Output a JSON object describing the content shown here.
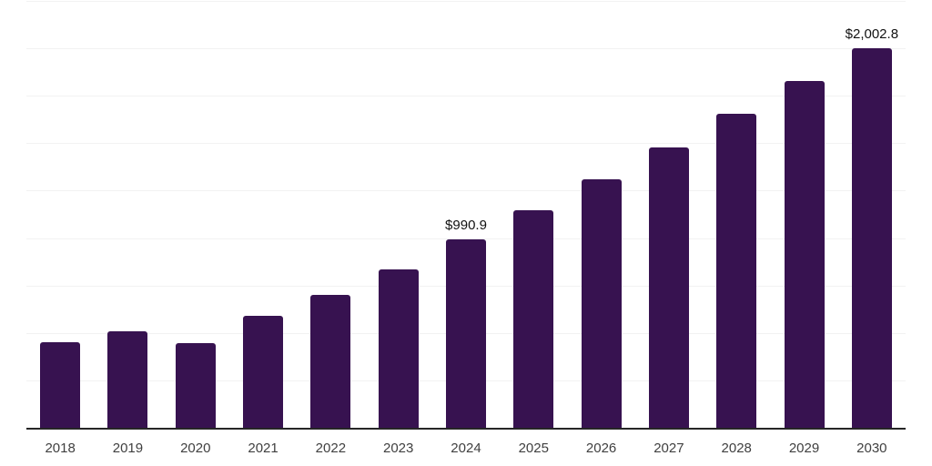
{
  "chart_data": {
    "type": "bar",
    "title": "",
    "xlabel": "",
    "ylabel": "",
    "categories": [
      "2018",
      "2019",
      "2020",
      "2021",
      "2022",
      "2023",
      "2024",
      "2025",
      "2026",
      "2027",
      "2028",
      "2029",
      "2030"
    ],
    "values": [
      450,
      510,
      445,
      592,
      702,
      836,
      990.9,
      1148,
      1310,
      1480,
      1653,
      1830,
      2002.8
    ],
    "value_labels": {
      "2024": "$990.9",
      "2030": "$2,002.8"
    },
    "ylim": [
      0,
      2250
    ],
    "gridline_step": 250,
    "grid": true,
    "legend": false,
    "colors": {
      "bar": "#371250",
      "gridline": "#f2f2f2",
      "axis": "#262626",
      "tick_label": "#404040",
      "value_label": "#111111",
      "background": "#ffffff"
    }
  }
}
